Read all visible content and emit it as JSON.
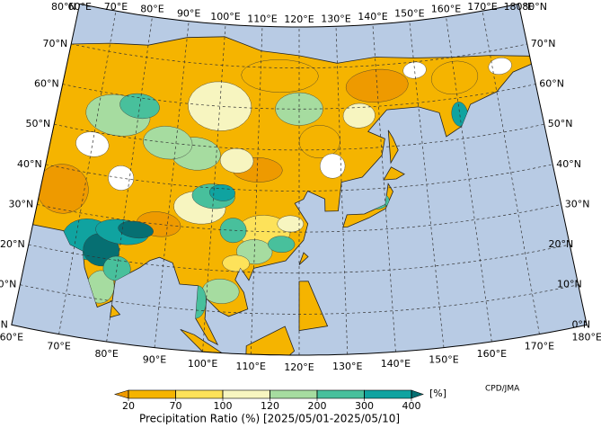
{
  "map": {
    "lon_labels": [
      "60°E",
      "70°E",
      "80°E",
      "90°E",
      "100°E",
      "110°E",
      "120°E",
      "130°E",
      "140°E",
      "150°E",
      "160°E",
      "170°E",
      "180°E"
    ],
    "lat_labels": [
      "0°N",
      "10°N",
      "20°N",
      "30°N",
      "40°N",
      "50°N",
      "60°N",
      "70°N",
      "80°N"
    ]
  },
  "legend": {
    "ticks": [
      20,
      70,
      100,
      120,
      200,
      300,
      400
    ],
    "colors": [
      "#ee9a00",
      "#f5b400",
      "#fde25a",
      "#f7f5c0",
      "#a6dca0",
      "#48c09c",
      "#10a3a0",
      "#066f72"
    ],
    "unit": "[%]"
  },
  "title": "Precipitation Ratio (%) [2025/05/01-2025/05/10]",
  "credit": "CPD/JMA"
}
